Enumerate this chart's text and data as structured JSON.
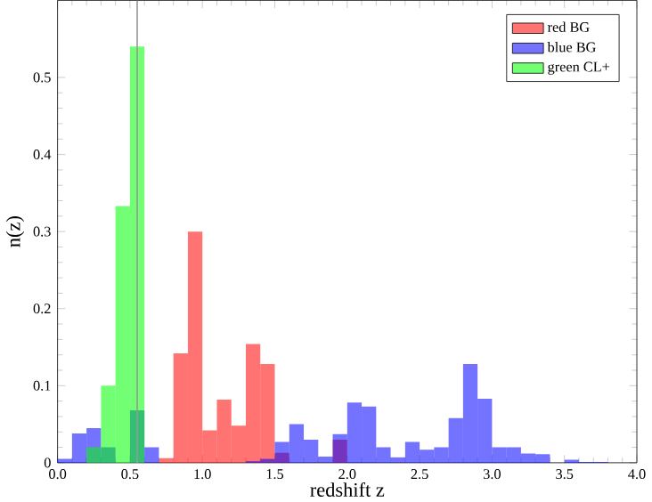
{
  "chart_data": {
    "type": "histogram",
    "xlabel": "redshift z",
    "ylabel": "n(z)",
    "bins": [
      0.0,
      0.1,
      0.2,
      0.3,
      0.4,
      0.5,
      0.6,
      0.7,
      0.8,
      0.9,
      1.0,
      1.1,
      1.2,
      1.3,
      1.4,
      1.5,
      1.6,
      1.7,
      1.8,
      1.9,
      2.0,
      2.1,
      2.2,
      2.3,
      2.4,
      2.5,
      2.6,
      2.7,
      2.8,
      2.9,
      3.0,
      3.1,
      3.2,
      3.3,
      3.4,
      3.5,
      3.6,
      3.7,
      3.8,
      3.9,
      4.0
    ],
    "series": [
      {
        "name": "red BG",
        "color": "#ff0000",
        "values": [
          0,
          0,
          0,
          0,
          0,
          0,
          0,
          0.006,
          0.142,
          0.3,
          0.042,
          0.082,
          0.048,
          0.154,
          0.128,
          0.013,
          null,
          null,
          null,
          0.03,
          null,
          0,
          0,
          0,
          0,
          0,
          0,
          0,
          0,
          0,
          0,
          0,
          0,
          0,
          0,
          0,
          0,
          0,
          0,
          0
        ]
      },
      {
        "name": "blue BG",
        "color": "#0000ff",
        "values": [
          0.005,
          0.038,
          0.045,
          0.02,
          0,
          0.068,
          0.02,
          0,
          0,
          0,
          0,
          0,
          0,
          0.002,
          0.005,
          0.027,
          0.05,
          0.03,
          0.008,
          0.037,
          0.078,
          0.073,
          0.02,
          0.007,
          0.027,
          0.017,
          0.02,
          0.058,
          0.128,
          0.083,
          0.02,
          0.02,
          0.012,
          0.011,
          0,
          0.004,
          0.001,
          0.001,
          0,
          0
        ]
      },
      {
        "name": "green CL+",
        "color": "#00ff00",
        "values": [
          0,
          0,
          0.02,
          0.1,
          0.333,
          0.54,
          0,
          0,
          0,
          0,
          0,
          0,
          0,
          0,
          0,
          0,
          0,
          0,
          0,
          0,
          0,
          0,
          0,
          0,
          0,
          0,
          0,
          0,
          0,
          0,
          0,
          0,
          0,
          0,
          0,
          0,
          0,
          0,
          0,
          0
        ]
      }
    ],
    "xlim": [
      0,
      4
    ],
    "ylim": [
      0,
      0.6
    ],
    "xticks": [
      {
        "value": 0,
        "label": "0.0"
      },
      0.5,
      {
        "value": 1,
        "label": "1.0"
      },
      1.5,
      {
        "value": 2,
        "label": "2.0"
      },
      2.5,
      {
        "value": 3,
        "label": "3.0"
      },
      3.5,
      {
        "value": 4,
        "label": "4.0"
      }
    ],
    "yticks": [
      0,
      0.1,
      0.2,
      0.3,
      0.4,
      0.5
    ],
    "ref_lines": [
      {
        "axis": "x",
        "value": 0.55,
        "color": "#999999"
      }
    ],
    "legend": "top right",
    "grid": false
  }
}
